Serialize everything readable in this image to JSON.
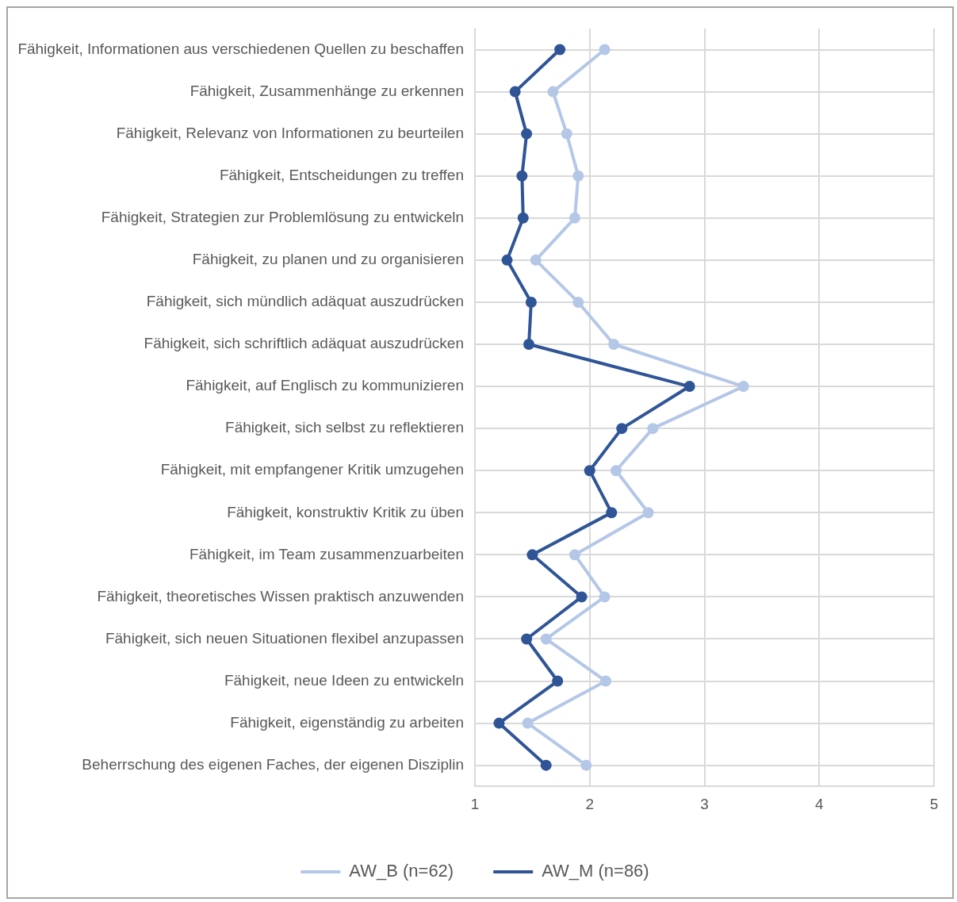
{
  "chart_data": {
    "type": "line",
    "orientation": "horizontal",
    "categories": [
      "Fähigkeit, Informationen aus verschiedenen Quellen zu beschaffen",
      "Fähigkeit, Zusammenhänge zu erkennen",
      "Fähigkeit, Relevanz von Informationen zu beurteilen",
      "Fähigkeit, Entscheidungen zu treffen",
      "Fähigkeit, Strategien zur Problemlösung zu entwickeln",
      "Fähigkeit, zu planen und zu organisieren",
      "Fähigkeit, sich mündlich adäquat auszudrücken",
      "Fähigkeit, sich schriftlich adäquat auszudrücken",
      "Fähigkeit, auf Englisch zu kommunizieren",
      "Fähigkeit, sich selbst zu reflektieren",
      "Fähigkeit, mit empfangener Kritik umzugehen",
      "Fähigkeit, konstruktiv Kritik zu üben",
      "Fähigkeit, im Team zusammenzuarbeiten",
      "Fähigkeit, theoretisches Wissen praktisch anzuwenden",
      "Fähigkeit, sich neuen Situationen flexibel anzupassen",
      "Fähigkeit, neue Ideen zu entwickeln",
      "Fähigkeit, eigenständig zu arbeiten",
      "Beherrschung des eigenen Faches, der eigenen Disziplin"
    ],
    "series": [
      {
        "name": "AW_B (n=62)",
        "color": "#b4c7e7",
        "values": [
          2.13,
          1.68,
          1.8,
          1.9,
          1.87,
          1.53,
          1.9,
          2.21,
          3.34,
          2.55,
          2.23,
          2.51,
          1.87,
          2.13,
          1.62,
          2.14,
          1.46,
          1.97
        ]
      },
      {
        "name": "AW_M (n=86)",
        "color": "#2f5597",
        "values": [
          1.74,
          1.35,
          1.45,
          1.41,
          1.42,
          1.28,
          1.49,
          1.47,
          2.87,
          2.28,
          2.0,
          2.19,
          1.5,
          1.93,
          1.45,
          1.72,
          1.21,
          1.62
        ]
      }
    ],
    "xlim": [
      1,
      5
    ],
    "xticks": [
      1,
      2,
      3,
      4,
      5
    ],
    "grid": true,
    "legend": "bottom",
    "marker": "circle",
    "line_style": "solid"
  }
}
